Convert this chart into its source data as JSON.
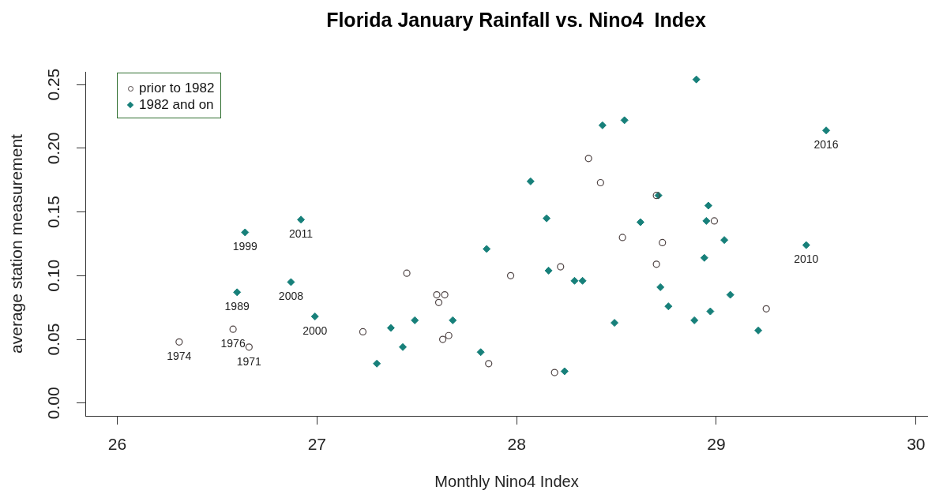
{
  "chart_data": {
    "type": "scatter",
    "title": "Florida January Rainfall vs. Nino4  Index",
    "xlabel": "Monthly Nino4 Index",
    "ylabel": "average station measurement",
    "xlim": [
      25.84,
      30.06
    ],
    "ylim": [
      -0.01,
      0.26
    ],
    "xticks": [
      26,
      27,
      28,
      29,
      30
    ],
    "yticks": [
      {
        "value": 0,
        "label": "0.00"
      },
      0.05,
      {
        "value": 0.1,
        "label": "0.10"
      },
      0.15,
      {
        "value": 0.2,
        "label": "0.20"
      },
      0.25
    ],
    "legend": "top left",
    "series": [
      {
        "name": "prior to 1982",
        "color": "#4f4444",
        "marker": "circle",
        "x": [
          26.31,
          26.58,
          26.66,
          27.23,
          27.45,
          27.6,
          27.64,
          27.61,
          27.63,
          27.66,
          27.86,
          27.97,
          28.22,
          28.19,
          28.36,
          28.42,
          28.53,
          28.7,
          28.99,
          28.73,
          28.7,
          29.25
        ],
        "values": [
          0.048,
          0.058,
          0.044,
          0.056,
          0.102,
          0.085,
          0.085,
          0.079,
          0.05,
          0.053,
          0.031,
          0.1,
          0.107,
          0.024,
          0.192,
          0.173,
          0.13,
          0.163,
          0.143,
          0.126,
          0.109,
          0.074
        ]
      },
      {
        "name": "1982 and on",
        "color": "#17807a",
        "marker": "diamond",
        "x": [
          26.64,
          26.6,
          26.92,
          26.87,
          26.99,
          27.37,
          27.43,
          27.3,
          27.49,
          27.68,
          27.82,
          27.85,
          28.07,
          28.15,
          28.16,
          28.29,
          28.33,
          28.24,
          28.43,
          28.54,
          28.49,
          28.9,
          29.55,
          28.71,
          28.96,
          28.62,
          28.95,
          29.04,
          29.45,
          28.94,
          28.72,
          28.76,
          29.07,
          28.97,
          28.89,
          29.21
        ],
        "values": [
          0.134,
          0.087,
          0.144,
          0.095,
          0.068,
          0.059,
          0.044,
          0.031,
          0.065,
          0.065,
          0.04,
          0.121,
          0.174,
          0.145,
          0.104,
          0.096,
          0.096,
          0.025,
          0.218,
          0.222,
          0.063,
          0.254,
          0.214,
          0.163,
          0.155,
          0.142,
          0.143,
          0.128,
          0.124,
          0.114,
          0.091,
          0.076,
          0.085,
          0.072,
          0.065,
          0.057
        ]
      }
    ],
    "annotations": [
      {
        "text": "1974",
        "x": 26.31,
        "y": 0.048
      },
      {
        "text": "1976",
        "x": 26.58,
        "y": 0.058
      },
      {
        "text": "1971",
        "x": 26.66,
        "y": 0.044
      },
      {
        "text": "1999",
        "x": 26.64,
        "y": 0.134
      },
      {
        "text": "1989",
        "x": 26.6,
        "y": 0.087
      },
      {
        "text": "2011",
        "x": 26.92,
        "y": 0.144
      },
      {
        "text": "2008",
        "x": 26.87,
        "y": 0.095
      },
      {
        "text": "2000",
        "x": 26.99,
        "y": 0.068
      },
      {
        "text": "2016",
        "x": 29.55,
        "y": 0.214
      },
      {
        "text": "2010",
        "x": 29.45,
        "y": 0.124
      }
    ]
  }
}
